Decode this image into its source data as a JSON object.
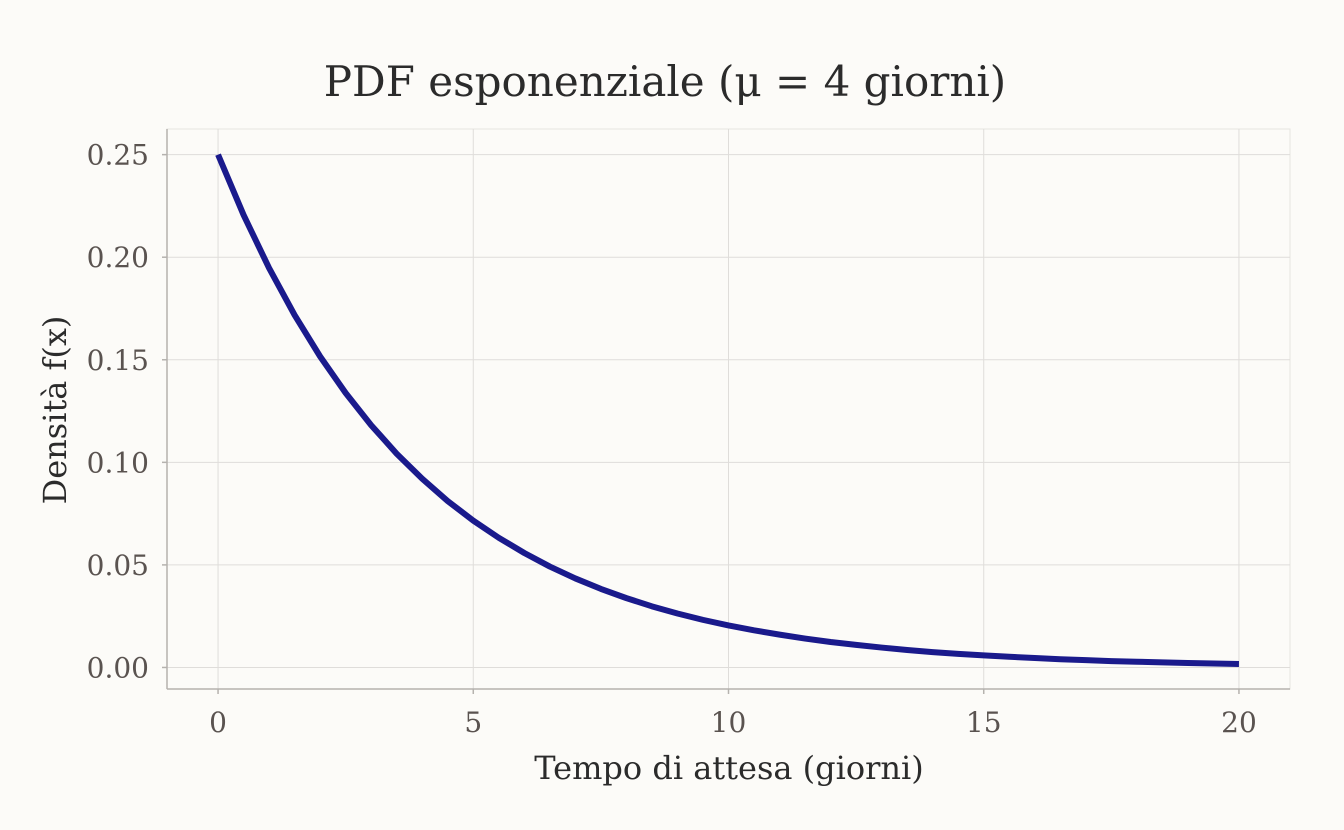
{
  "chart_data": {
    "type": "line",
    "title": "PDF esponenziale (μ = 4 giorni)",
    "xlabel": "Tempo di attesa (giorni)",
    "ylabel": "Densità f(x)",
    "xlim": [
      -1,
      21
    ],
    "ylim": [
      -0.0105,
      0.2625
    ],
    "xticks": [
      0,
      5,
      10,
      15,
      20
    ],
    "xtick_labels": [
      "0",
      "5",
      "10",
      "15",
      "20"
    ],
    "yticks": [
      0,
      0.05,
      0.1,
      0.15,
      0.2,
      0.25
    ],
    "ytick_labels": [
      "0.00",
      "0.05",
      "0.10",
      "0.15",
      "0.20",
      "0.25"
    ],
    "grid": true,
    "series": [
      {
        "color": "#1a1a8c",
        "x": [
          0,
          0.5,
          1,
          1.5,
          2,
          2.5,
          3,
          3.5,
          4,
          4.5,
          5,
          5.5,
          6,
          6.5,
          7,
          7.5,
          8,
          8.5,
          9,
          9.5,
          10,
          10.5,
          11,
          11.5,
          12,
          12.5,
          13,
          13.5,
          14,
          14.5,
          15,
          15.5,
          16,
          16.5,
          17,
          17.5,
          18,
          18.5,
          19,
          19.5,
          20
        ],
        "y": [
          0.25,
          0.2206,
          0.1947,
          0.1718,
          0.1516,
          0.1338,
          0.1181,
          0.1042,
          0.092,
          0.0811,
          0.0716,
          0.0632,
          0.0558,
          0.0492,
          0.0434,
          0.0383,
          0.0338,
          0.0298,
          0.0263,
          0.0232,
          0.0205,
          0.0181,
          0.016,
          0.0141,
          0.0124,
          0.011,
          0.0097,
          0.0085,
          0.0075,
          0.0066,
          0.0059,
          0.0052,
          0.0046,
          0.004,
          0.0036,
          0.0031,
          0.0028,
          0.0025,
          0.0022,
          0.0019,
          0.0017
        ]
      }
    ]
  }
}
